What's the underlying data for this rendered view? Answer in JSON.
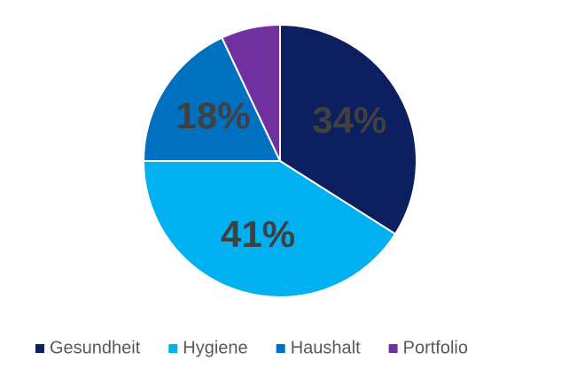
{
  "chart_data": {
    "type": "pie",
    "categories": [
      "Gesundheit",
      "Hygiene",
      "Haushalt",
      "Portfolio"
    ],
    "values": [
      34,
      41,
      18,
      7
    ],
    "value_labels": [
      "34%",
      "41%",
      "18%",
      null
    ],
    "colors": [
      "#0c1f5e",
      "#00b0f0",
      "#0070c0",
      "#7030a0"
    ],
    "legend": "bottom"
  }
}
